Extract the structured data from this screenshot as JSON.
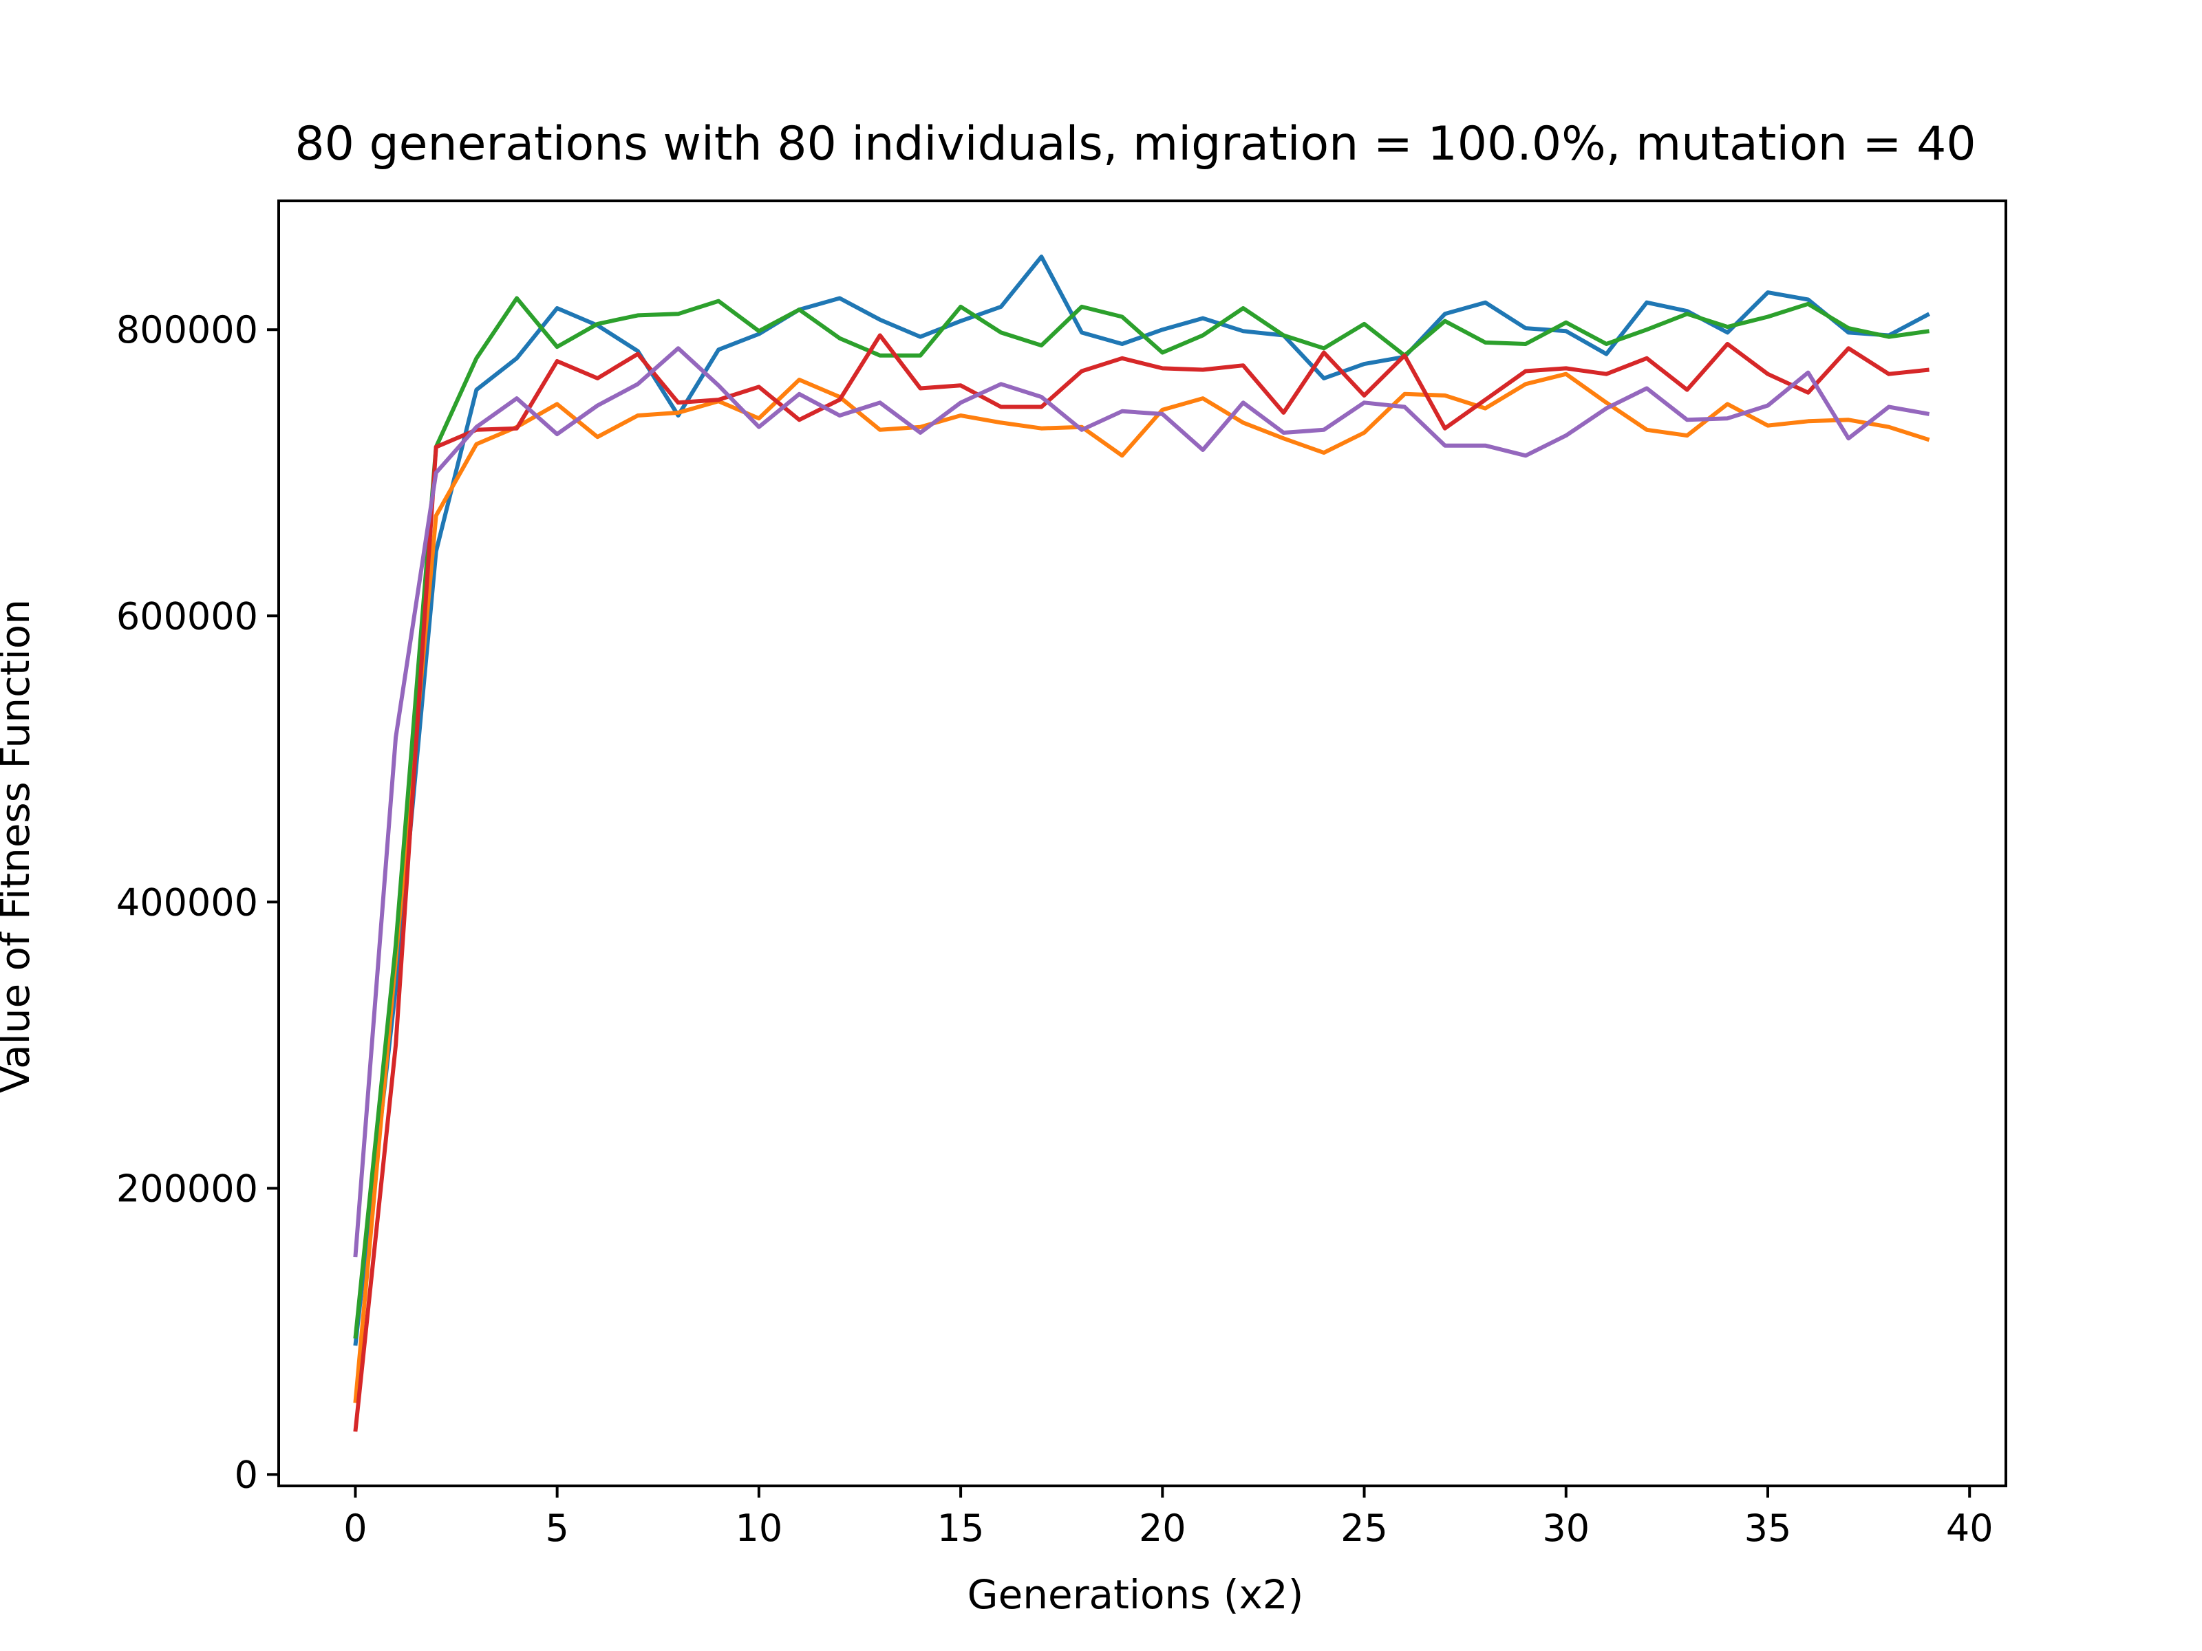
{
  "chart_data": {
    "type": "line",
    "title": "80 generations with 80 individuals, migration = 100.0%, mutation = 40",
    "xlabel": "Generations (x2)",
    "ylabel": "Value of Fitness Function",
    "xlim": [
      -1.9,
      40.9
    ],
    "ylim": [
      -8000,
      890000
    ],
    "xticks": [
      0,
      5,
      10,
      15,
      20,
      25,
      30,
      35,
      40
    ],
    "yticks": [
      0,
      200000,
      400000,
      600000,
      800000
    ],
    "grid": false,
    "legend": "none",
    "x": [
      0,
      1,
      2,
      3,
      4,
      5,
      6,
      7,
      8,
      9,
      10,
      11,
      12,
      13,
      14,
      15,
      16,
      17,
      18,
      19,
      20,
      21,
      22,
      23,
      24,
      25,
      26,
      27,
      28,
      29,
      30,
      31,
      32,
      33,
      34,
      35,
      36,
      37,
      38,
      39
    ],
    "series": [
      {
        "color": "#1f77b4",
        "values": [
          90000,
          340000,
          645000,
          758000,
          780000,
          815000,
          803000,
          785000,
          740000,
          786000,
          797000,
          814000,
          822000,
          807000,
          795000,
          806000,
          816000,
          851000,
          798000,
          790000,
          800000,
          808000,
          799000,
          796000,
          766000,
          776000,
          781000,
          811000,
          819000,
          801000,
          799000,
          783000,
          819000,
          813000,
          798000,
          826000,
          821000,
          798000,
          796000,
          811000
        ]
      },
      {
        "color": "#ff7f0e",
        "values": [
          50000,
          360000,
          670000,
          720000,
          732000,
          748000,
          725000,
          740000,
          742000,
          750000,
          738000,
          765000,
          753000,
          730000,
          732000,
          740000,
          735000,
          731000,
          732000,
          712000,
          744000,
          752000,
          735000,
          724000,
          714000,
          728000,
          755000,
          754000,
          745000,
          762000,
          769000,
          749000,
          730000,
          726000,
          748000,
          733000,
          736000,
          737000,
          732000,
          723000
        ]
      },
      {
        "color": "#2ca02c",
        "values": [
          95000,
          370000,
          718000,
          780000,
          822000,
          788000,
          804000,
          810000,
          811000,
          820000,
          799000,
          814000,
          794000,
          782000,
          782000,
          816000,
          798000,
          789000,
          816000,
          809000,
          784000,
          796000,
          815000,
          796000,
          787000,
          804000,
          782000,
          806000,
          791000,
          790000,
          805000,
          790000,
          800000,
          811000,
          802000,
          809000,
          818000,
          801000,
          795000,
          799000
        ]
      },
      {
        "color": "#d62728",
        "values": [
          30000,
          300000,
          718000,
          730000,
          731000,
          778000,
          766000,
          783000,
          749000,
          751000,
          760000,
          737000,
          751000,
          796000,
          759000,
          761000,
          746000,
          746000,
          771000,
          780000,
          773000,
          772000,
          775000,
          742000,
          784000,
          754000,
          782000,
          731000,
          751000,
          771000,
          773000,
          769000,
          780000,
          758000,
          790000,
          769000,
          756000,
          787000,
          769000,
          772000
        ]
      },
      {
        "color": "#9467bd",
        "values": [
          152000,
          515000,
          700000,
          732000,
          752000,
          727000,
          747000,
          762000,
          787000,
          761000,
          732000,
          755000,
          740000,
          749000,
          728000,
          749000,
          762000,
          753000,
          730000,
          743000,
          741000,
          716000,
          749000,
          728000,
          730000,
          749000,
          746000,
          719000,
          719000,
          712000,
          726000,
          745000,
          759000,
          737000,
          738000,
          747000,
          770000,
          724000,
          746000,
          741000
        ]
      }
    ]
  }
}
